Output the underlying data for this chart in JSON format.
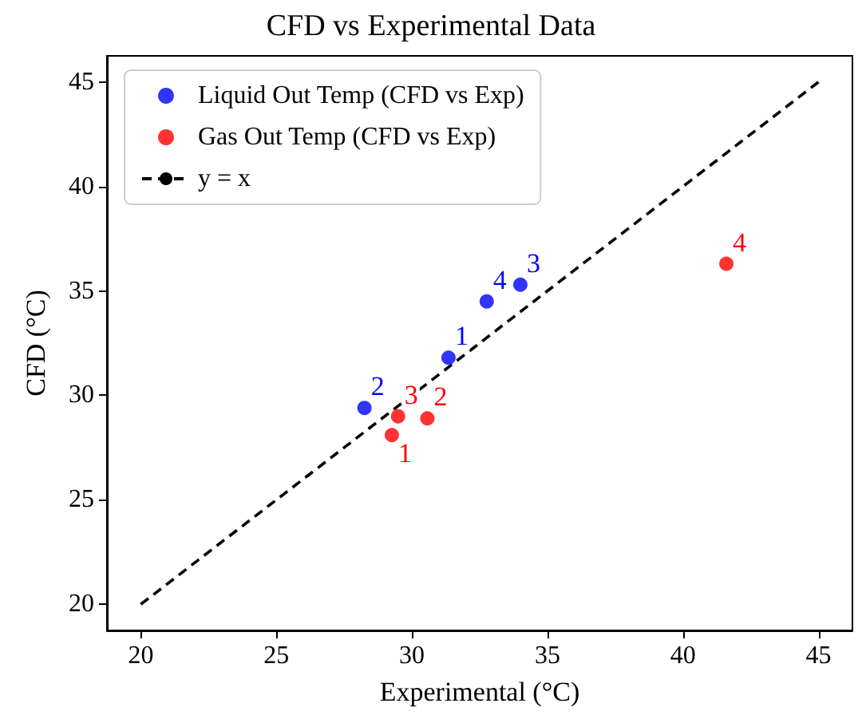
{
  "chart_data": {
    "type": "scatter",
    "title": "CFD vs Experimental Data",
    "xlabel": "Experimental (°C)",
    "ylabel": "CFD (°C)",
    "xlim": [
      18.75,
      46.25
    ],
    "xticks": [
      20,
      25,
      30,
      35,
      40,
      45
    ],
    "ylim": [
      18.75,
      46.25
    ],
    "yticks": [
      20,
      25,
      30,
      35,
      40,
      45
    ],
    "annotations": [
      {
        "text": "1",
        "x": 31.35,
        "y": 31.8
      },
      {
        "text": "2",
        "x": 28.25,
        "y": 29.4
      },
      {
        "text": "3",
        "x": 34.0,
        "y": 35.3
      },
      {
        "text": "4",
        "x": 32.76,
        "y": 34.5
      },
      {
        "text": "1",
        "x": 29.26,
        "y": 28.1
      },
      {
        "text": "2",
        "x": 30.57,
        "y": 28.9
      },
      {
        "text": "3",
        "x": 29.49,
        "y": 29.0
      },
      {
        "text": "4",
        "x": 41.6,
        "y": 36.3
      }
    ],
    "grid": false,
    "legend": "top left",
    "marker": "circle",
    "series": [
      {
        "name": "Liquid Out Temp (CFD vs Exp)",
        "color": "#0000ff",
        "x": [
          31.35,
          28.25,
          34.0,
          32.76
        ],
        "values": [
          31.8,
          29.4,
          35.3,
          34.5
        ]
      },
      {
        "name": "Gas Out Temp (CFD vs Exp)",
        "color": "#ff0000",
        "x": [
          29.26,
          30.57,
          29.49,
          41.6
        ],
        "values": [
          28.1,
          28.9,
          29.0,
          36.3
        ]
      },
      {
        "name": "y = x",
        "type": "line",
        "color": "#000000",
        "line_style": "dashed",
        "marker": "none",
        "x": [
          20,
          45
        ],
        "values": [
          20,
          45
        ]
      }
    ]
  }
}
